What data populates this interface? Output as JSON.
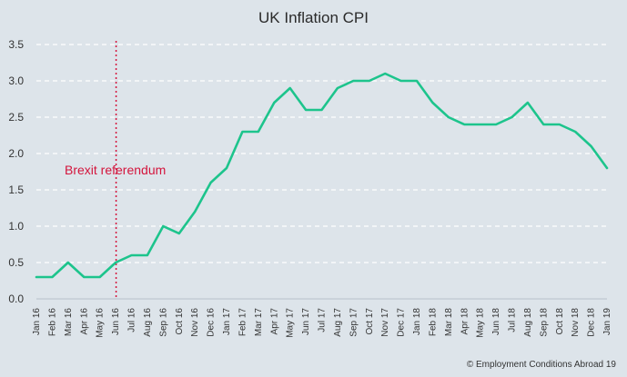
{
  "chart_data": {
    "type": "line",
    "title": "UK Inflation CPI",
    "xlabel": "",
    "ylabel": "",
    "ylim": [
      0,
      3.5
    ],
    "yticks": [
      "0.0",
      "0.5",
      "1.0",
      "1.5",
      "2.0",
      "2.5",
      "3.0",
      "3.5"
    ],
    "grid": "horizontal-dashed",
    "categories": [
      "Jan 16",
      "Feb 16",
      "Mar 16",
      "Apr 16",
      "May 16",
      "Jun 16",
      "Jul 16",
      "Aug 16",
      "Sep 16",
      "Oct 16",
      "Nov 16",
      "Dec 16",
      "Jan 17",
      "Feb 17",
      "Mar 17",
      "Apr 17",
      "May 17",
      "Jun 17",
      "Jul 17",
      "Aug 17",
      "Sep 17",
      "Oct 17",
      "Nov 17",
      "Dec 17",
      "Jan 18",
      "Feb 18",
      "Mar 18",
      "Apr 18",
      "May 18",
      "Jun 18",
      "Jul 18",
      "Aug 18",
      "Sep 18",
      "Oct 18",
      "Nov 18",
      "Dec 18",
      "Jan 19"
    ],
    "series": [
      {
        "values": [
          0.3,
          0.3,
          0.5,
          0.3,
          0.3,
          0.5,
          0.6,
          0.6,
          1.0,
          0.9,
          1.2,
          1.6,
          1.8,
          2.3,
          2.3,
          2.7,
          2.9,
          2.6,
          2.6,
          2.9,
          3.0,
          3.0,
          3.1,
          3.0,
          3.0,
          2.7,
          2.5,
          2.4,
          2.4,
          2.4,
          2.5,
          2.7,
          2.4,
          2.4,
          2.3,
          2.1,
          1.8
        ],
        "color": "#1dc48c"
      }
    ],
    "annotation": {
      "label": "Brexit referendum",
      "at_category": "Jun 16",
      "color": "#d4143c"
    }
  },
  "footer": "© Employment Conditions Abroad 19"
}
